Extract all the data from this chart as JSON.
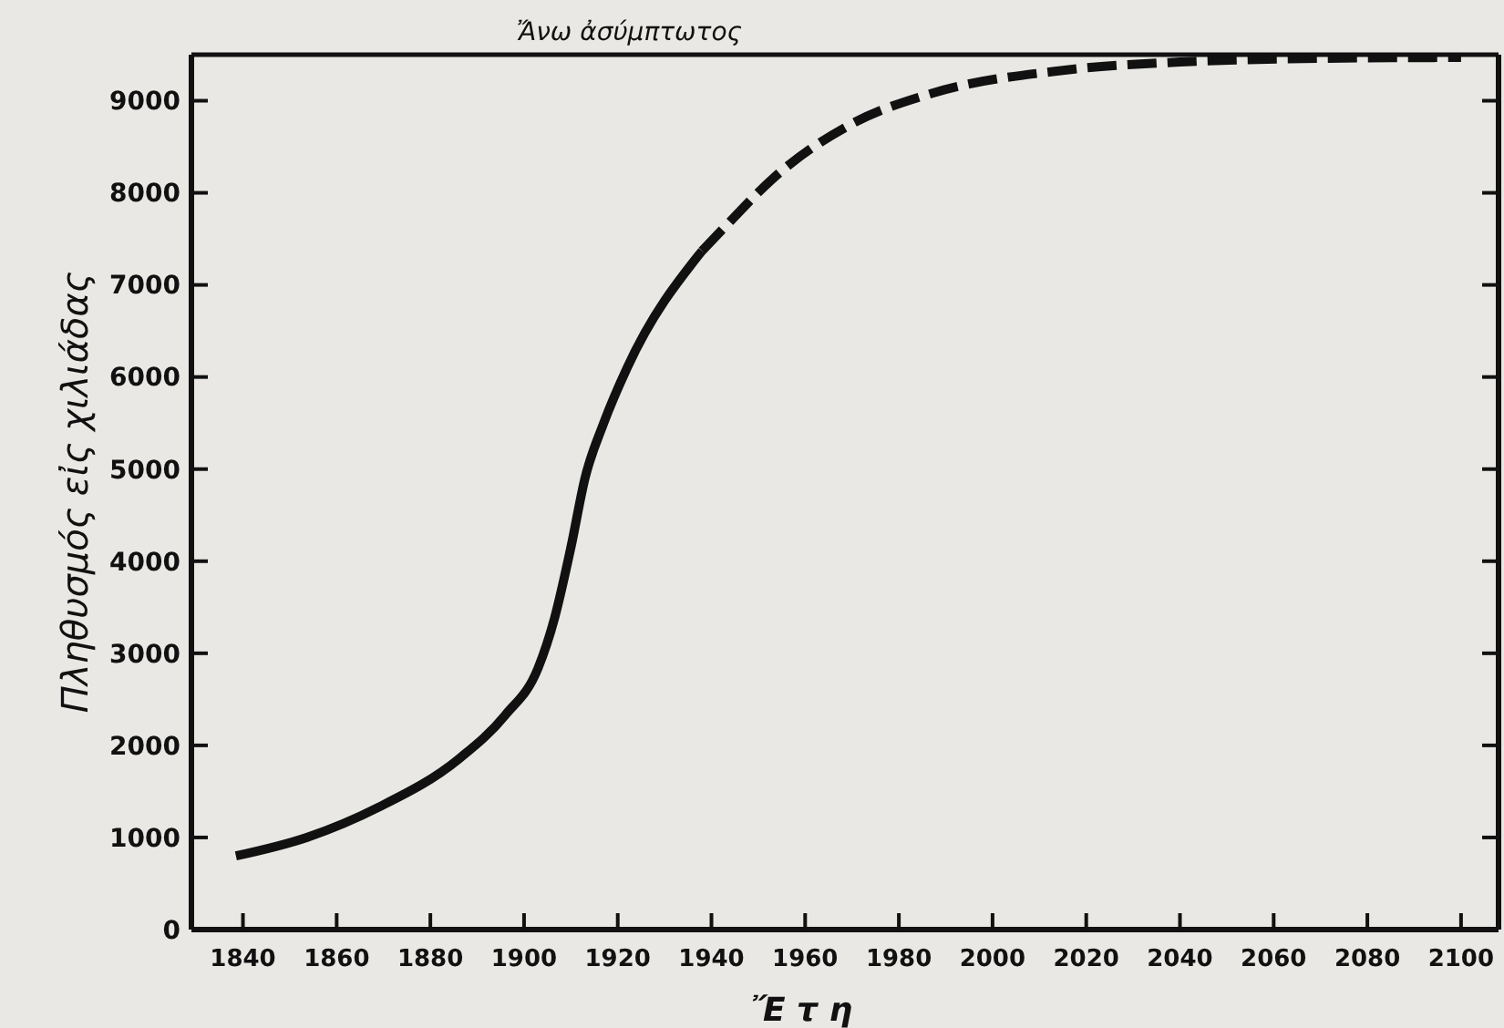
{
  "chart_data": {
    "type": "line",
    "xlabel": "Ἔ τ η",
    "ylabel": "Πληθυσμός εἰς χιλιάδας",
    "xlim": [
      1829,
      2108
    ],
    "ylim": [
      0,
      9500
    ],
    "xticks": [
      1840,
      1860,
      1880,
      1900,
      1920,
      1940,
      1960,
      1980,
      2000,
      2020,
      2040,
      2060,
      2080,
      2100
    ],
    "yticks": [
      0,
      1000,
      2000,
      3000,
      4000,
      5000,
      6000,
      7000,
      8000,
      9000
    ],
    "marker": "none",
    "ref_lines": [
      {
        "axis": "y",
        "value": 9500,
        "label": "Ἄνω ἀσύμπτωτος",
        "color": "#111111",
        "line_style": "solid"
      }
    ],
    "series": [
      {
        "color": "#111111",
        "line_style": "solid",
        "x": [
          1838.5,
          1853.6,
          1869,
          1886,
          1896,
          1903,
          1906.5,
          1910,
          1913,
          1917,
          1922,
          1938
        ],
        "values": [
          800,
          1000,
          1330,
          1850,
          2330,
          2840,
          3380,
          4150,
          4900,
          5500,
          6100,
          7370
        ]
      },
      {
        "color": "#111111",
        "line_style": "dashed",
        "x": [
          1938,
          1944,
          1953,
          1970,
          1987,
          2015,
          2040,
          2070,
          2100
        ],
        "values": [
          7370,
          7690,
          8150,
          8750,
          9080,
          9330,
          9420,
          9460,
          9470
        ]
      }
    ]
  }
}
